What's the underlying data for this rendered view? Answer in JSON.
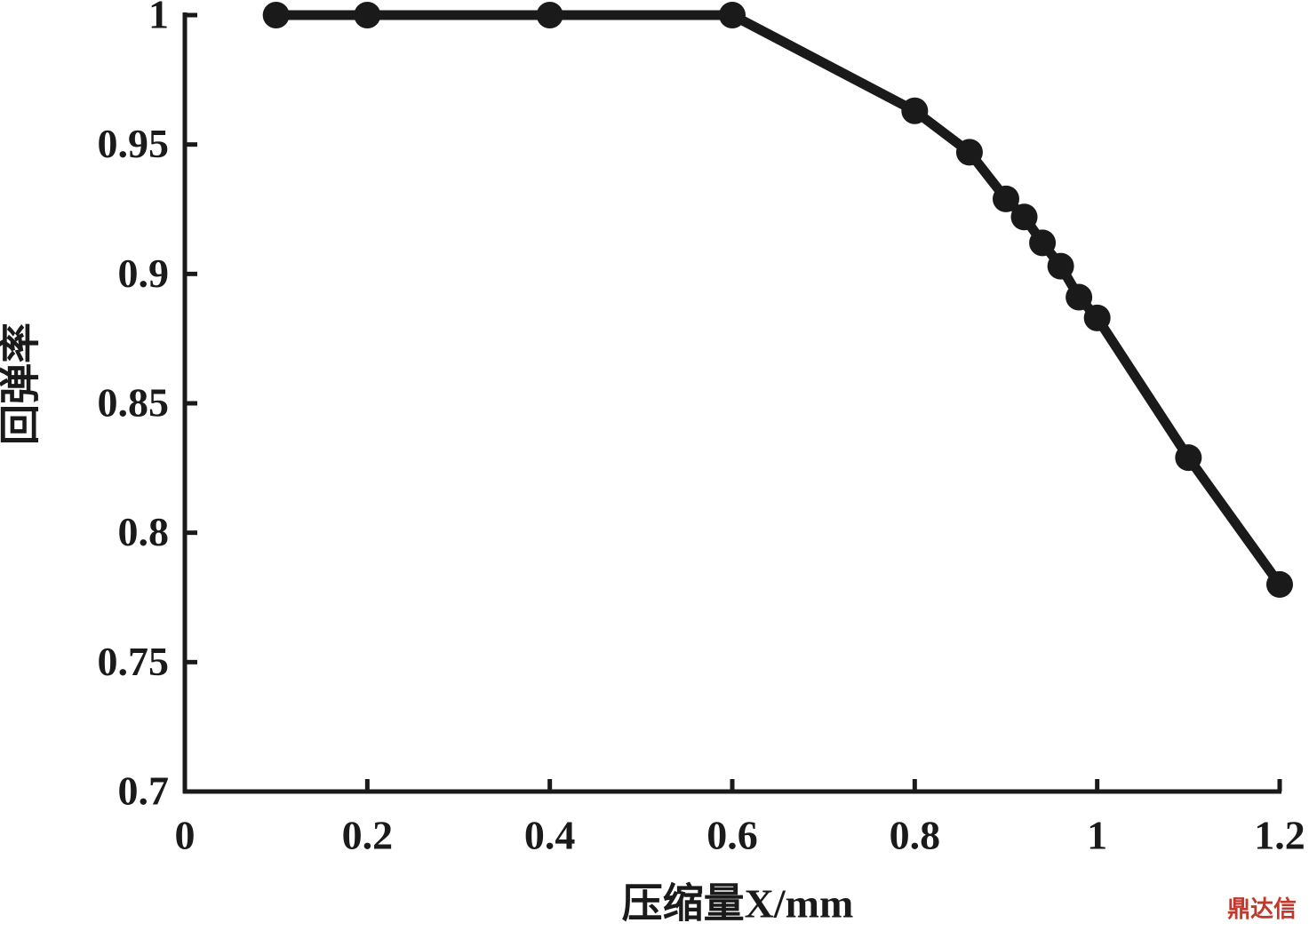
{
  "chart_data": {
    "type": "line",
    "xlabel": "压缩量X/mm",
    "ylabel": "回弹率",
    "watermark": "鼎达信",
    "x": [
      0.1,
      0.2,
      0.4,
      0.6,
      0.8,
      0.86,
      0.9,
      0.92,
      0.94,
      0.96,
      0.98,
      1.0,
      1.1,
      1.2
    ],
    "series": [
      {
        "color": "#1a1a1a",
        "values": [
          1,
          1,
          1,
          1,
          0.963,
          0.947,
          0.929,
          0.922,
          0.912,
          0.903,
          0.891,
          0.883,
          0.829,
          0.78
        ]
      }
    ],
    "xlim": [
      0,
      1.2
    ],
    "xticks": [
      0,
      0.2,
      0.4,
      0.6,
      0.8,
      1,
      1.2
    ],
    "ylim": [
      0.7,
      1
    ],
    "yticks": [
      0.7,
      0.75,
      0.8,
      0.85,
      0.9,
      0.95,
      1
    ],
    "grid": false
  }
}
